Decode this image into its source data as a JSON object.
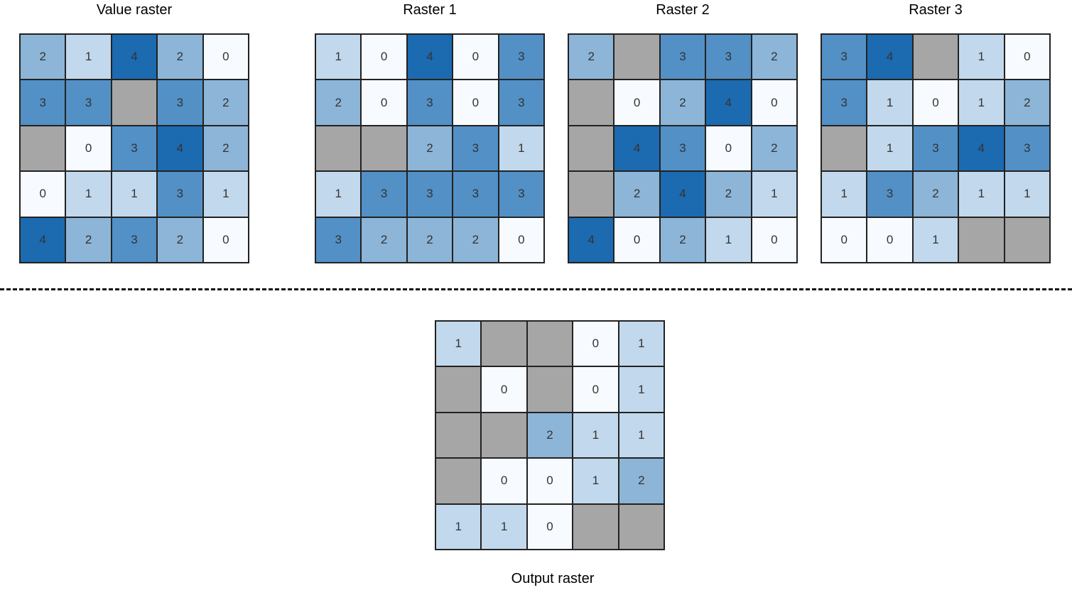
{
  "colors": {
    "0": "#f7fbff",
    "1": "#c2d8ec",
    "2": "#8cb5d8",
    "3": "#5290c6",
    "4": "#1c6ab0",
    "null": "#a6a6a6",
    "text": "#333333"
  },
  "rasters": [
    {
      "id": "value",
      "title": "Value raster",
      "cells": [
        [
          2,
          1,
          4,
          2,
          0
        ],
        [
          3,
          3,
          null,
          3,
          2
        ],
        [
          null,
          0,
          3,
          4,
          2
        ],
        [
          0,
          1,
          1,
          3,
          1
        ],
        [
          4,
          2,
          3,
          2,
          0
        ]
      ]
    },
    {
      "id": "raster1",
      "title": "Raster 1",
      "cells": [
        [
          1,
          0,
          4,
          0,
          3
        ],
        [
          2,
          0,
          3,
          0,
          3
        ],
        [
          null,
          null,
          2,
          3,
          1
        ],
        [
          1,
          3,
          3,
          3,
          3
        ],
        [
          3,
          2,
          2,
          2,
          0
        ]
      ]
    },
    {
      "id": "raster2",
      "title": "Raster 2",
      "cells": [
        [
          2,
          null,
          3,
          3,
          2
        ],
        [
          null,
          0,
          2,
          4,
          0
        ],
        [
          null,
          4,
          3,
          0,
          2
        ],
        [
          null,
          2,
          4,
          2,
          1
        ],
        [
          4,
          0,
          2,
          1,
          0
        ]
      ]
    },
    {
      "id": "raster3",
      "title": "Raster 3",
      "cells": [
        [
          3,
          4,
          null,
          1,
          0
        ],
        [
          3,
          1,
          0,
          1,
          2
        ],
        [
          null,
          1,
          3,
          4,
          3
        ],
        [
          1,
          3,
          2,
          1,
          1
        ],
        [
          0,
          0,
          1,
          null,
          null
        ]
      ]
    },
    {
      "id": "output",
      "title": "Output raster",
      "cells": [
        [
          1,
          null,
          null,
          0,
          1
        ],
        [
          null,
          0,
          null,
          0,
          1
        ],
        [
          null,
          null,
          2,
          1,
          1
        ],
        [
          null,
          0,
          0,
          1,
          2
        ],
        [
          1,
          1,
          0,
          null,
          null
        ]
      ]
    }
  ]
}
